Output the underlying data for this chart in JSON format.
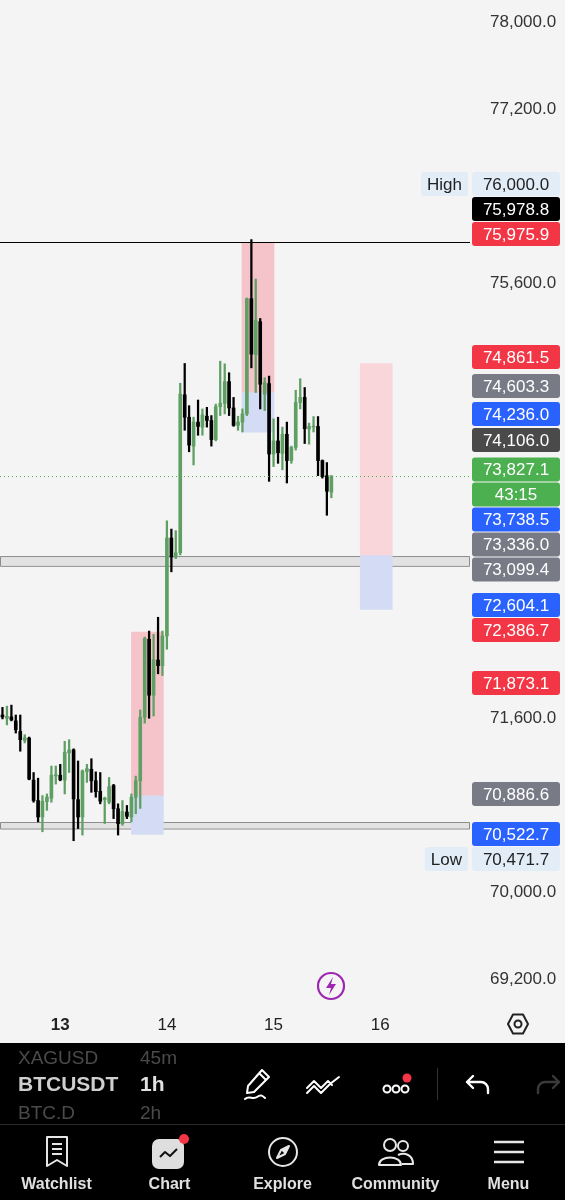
{
  "chart_data": {
    "type": "candlestick",
    "series": [
      {
        "type": "candlestick",
        "x": [
          12.458,
          12.5,
          12.542,
          12.583,
          12.625,
          12.667,
          12.708,
          12.75,
          12.792,
          12.833,
          12.875,
          12.917,
          12.958,
          13,
          13.042,
          13.083,
          13.125,
          13.167,
          13.208,
          13.25,
          13.292,
          13.333,
          13.375,
          13.417,
          13.458,
          13.5,
          13.542,
          13.583,
          13.625,
          13.667,
          13.708,
          13.75,
          13.792,
          13.833,
          13.875,
          13.917,
          13.958,
          14,
          14.042,
          14.083,
          14.125,
          14.167,
          14.208,
          14.25,
          14.292,
          14.333,
          14.375,
          14.417,
          14.458,
          14.5,
          14.542,
          14.583,
          14.625,
          14.667,
          14.708,
          14.75,
          14.792,
          14.833,
          14.875,
          14.917,
          14.958,
          15,
          15.042,
          15.083,
          15.125,
          15.167,
          15.208,
          15.25,
          15.292,
          15.333,
          15.375,
          15.417,
          15.458,
          15.5,
          15.542
        ],
        "ohlc": [
          [
            71628,
            71698,
            71592,
            71610
          ],
          [
            71598,
            71710,
            71537,
            71616
          ],
          [
            71610,
            71719,
            71574,
            71583
          ],
          [
            71574,
            71628,
            71462,
            71492
          ],
          [
            71477,
            71628,
            71295,
            71401
          ],
          [
            71395,
            71447,
            71371,
            71419
          ],
          [
            71416,
            71425,
            71032,
            71038
          ],
          [
            71029,
            71099,
            70826,
            70841
          ],
          [
            70841,
            71047,
            70645,
            70690
          ],
          [
            70690,
            70887,
            70554,
            70835
          ],
          [
            70832,
            70902,
            70751,
            70872
          ],
          [
            70863,
            71159,
            70826,
            71074
          ],
          [
            71068,
            71159,
            70993,
            71080
          ],
          [
            71074,
            71174,
            71023,
            71032
          ],
          [
            71029,
            71386,
            70902,
            71286
          ],
          [
            71280,
            71401,
            71099,
            71307
          ],
          [
            71307,
            71317,
            70471.7,
            70856
          ],
          [
            70850,
            71205,
            70584,
            70690
          ],
          [
            70690,
            71123,
            70524,
            71114
          ],
          [
            71108,
            71174,
            71008,
            71135
          ],
          [
            71129,
            71226,
            70917,
            71023
          ],
          [
            71023,
            71105,
            70872,
            70923
          ],
          [
            70926,
            71099,
            70811,
            70835
          ],
          [
            70850,
            70872,
            70630,
            70863
          ],
          [
            70826,
            71053,
            70811,
            70969
          ],
          [
            70980,
            70990,
            70675,
            70766
          ],
          [
            70766,
            70811,
            70524,
            70629
          ],
          [
            70629,
            70841,
            70614,
            70741
          ],
          [
            70735,
            70796,
            70675,
            70696
          ],
          [
            70690,
            70902,
            70645,
            70872
          ],
          [
            70872,
            71066,
            70720,
            71023
          ],
          [
            71023,
            71674,
            70769,
            71607
          ],
          [
            71607,
            72345,
            71553,
            72333
          ],
          [
            72325,
            72400,
            71598,
            71810
          ],
          [
            71810,
            72370,
            71619,
            72137
          ],
          [
            72134,
            72527,
            72007,
            72082
          ],
          [
            72082,
            72400,
            71991,
            72355
          ],
          [
            72355,
            73414,
            72233,
            73256
          ],
          [
            73256,
            73338,
            72945,
            73081
          ],
          [
            73081,
            73323,
            73066,
            73120
          ],
          [
            73120,
            74679,
            73100,
            74579
          ],
          [
            74573,
            74861,
            74247,
            74367
          ],
          [
            74367,
            74473,
            74049,
            74110
          ],
          [
            74101,
            74367,
            73928,
            74322
          ],
          [
            74322,
            74525,
            74201,
            74282
          ],
          [
            74276,
            74443,
            74201,
            74388
          ],
          [
            74376,
            74458,
            74276,
            74337
          ],
          [
            74337,
            74382,
            74101,
            74161
          ],
          [
            74161,
            74488,
            74149,
            74464
          ],
          [
            74464,
            74882,
            74382,
            74494
          ],
          [
            74494,
            74858,
            74397,
            74694
          ],
          [
            74694,
            74776,
            74382,
            74452
          ],
          [
            74452,
            74549,
            74283,
            74292
          ],
          [
            74292,
            74376,
            74247,
            74322
          ],
          [
            74322,
            74443,
            74231,
            74397
          ],
          [
            74397,
            75463,
            74382,
            75457
          ],
          [
            75457,
            76000,
            74821,
            74948
          ],
          [
            74942,
            75638,
            74594,
            75260
          ],
          [
            75245,
            75275,
            74443,
            74670
          ],
          [
            74579,
            74730,
            74428,
            74685
          ],
          [
            74676,
            74745,
            73777,
            74028
          ],
          [
            74028,
            74352,
            73913,
            74149
          ],
          [
            74149,
            74367,
            73943,
            74040
          ],
          [
            74034,
            74276,
            73883,
            74210
          ],
          [
            74210,
            74322,
            73762,
            73968
          ],
          [
            73968,
            74101,
            73943,
            74089
          ],
          [
            74089,
            74615,
            74065,
            74503
          ],
          [
            74503,
            74721,
            74443,
            74549
          ],
          [
            74549,
            74640,
            74125,
            74261
          ],
          [
            74258,
            74313,
            74119,
            74282
          ],
          [
            74276,
            74373,
            74231,
            74282
          ],
          [
            74282,
            74373,
            73829,
            73968
          ],
          [
            73968,
            73974,
            73807,
            73822
          ],
          [
            73829,
            73950,
            73465,
            73686
          ],
          [
            73677,
            73830,
            73626,
            73827.1
          ]
        ],
        "colors": [
          "#000000",
          "#5f9f63",
          "#000000",
          "#000000",
          "#000000",
          "#5f9f63",
          "#000000",
          "#000000",
          "#000000",
          "#5f9f63",
          "#5f9f63",
          "#5f9f63",
          "#5f9f63",
          "#000000",
          "#5f9f63",
          "#5f9f63",
          "#000000",
          "#000000",
          "#5f9f63",
          "#5f9f63",
          "#000000",
          "#000000",
          "#000000",
          "#5f9f63",
          "#5f9f63",
          "#000000",
          "#000000",
          "#5f9f63",
          "#000000",
          "#5f9f63",
          "#5f9f63",
          "#5f9f63",
          "#5f9f63",
          "#000000",
          "#5f9f63",
          "#000000",
          "#5f9f63",
          "#5f9f63",
          "#000000",
          "#5f9f63",
          "#5f9f63",
          "#000000",
          "#000000",
          "#5f9f63",
          "#000000",
          "#5f9f63",
          "#000000",
          "#000000",
          "#5f9f63",
          "#5f9f63",
          "#5f9f63",
          "#000000",
          "#000000",
          "#5f9f63",
          "#5f9f63",
          "#5f9f63",
          "#000000",
          "#5f9f63",
          "#000000",
          "#5f9f63",
          "#000000",
          "#5f9f63",
          "#000000",
          "#5f9f63",
          "#000000",
          "#5f9f63",
          "#5f9f63",
          "#5f9f63",
          "#000000",
          "#5f9f63",
          "#5f9f63",
          "#000000",
          "#000000",
          "#000000",
          "#5f9f63"
        ]
      },
      {
        "type": "bar",
        "x": [
          13.817,
          14.854,
          15.963
        ],
        "base": [
          70890,
          74600,
          73100
        ],
        "values": [
          1500,
          1370,
          1760
        ],
        "colors": [
          "#f4c4ca",
          "#f4c4ca",
          "#f8d6da"
        ]
      },
      {
        "type": "bar",
        "x": [
          13.817,
          14.854,
          15.963
        ],
        "base": [
          70890,
          74600,
          73100
        ],
        "values": [
          -360,
          -370,
          -500
        ],
        "color": "#d4dbf5"
      }
    ],
    "xlim": [
      12.435,
      16.842
    ],
    "xticks": [
      13,
      14,
      15,
      16
    ],
    "ylim": [
      69200,
      78000
    ],
    "yticks": [
      {
        "value": 78000,
        "label": "78,000.0"
      },
      {
        "value": 77200,
        "label": "77,200.0"
      },
      {
        "value": 75600,
        "label": "75,600.0"
      },
      {
        "value": 71600,
        "label": "71,600.0"
      },
      {
        "value": 70000,
        "label": "70,000.0"
      },
      {
        "value": 69200,
        "label": "69,200.0"
      }
    ],
    "ref_lines": [
      {
        "axis": "y",
        "value": 75978.8,
        "label": "75,978.8",
        "color": "#000000"
      },
      {
        "axis": "y",
        "value": 73827.1,
        "label": "73,827.1",
        "color": "#4caf50",
        "line_style": "dotted"
      }
    ],
    "bands": [
      {
        "axis": "y",
        "from": 73000,
        "to": 73090,
        "color": "#e2e2e2"
      },
      {
        "axis": "y",
        "from": 70584,
        "to": 70644,
        "color": "#e2e2e2"
      }
    ],
    "annotations": [
      "High",
      "76,000.0",
      "75,975.9",
      "74,861.5",
      "74,603.3",
      "74,236.0",
      "74,106.0",
      "43:15",
      "73,738.5",
      "73,336.0",
      "73,099.4",
      "72,604.1",
      "72,386.7",
      "71,873.1",
      "70,886.6",
      "70,522.7",
      "Low",
      "70,471.7",
      "XAGUSD",
      "45m",
      "BTCUSDT",
      "1h",
      "BTC.D",
      "2h",
      "Watchlist",
      "Chart",
      "Explore",
      "Community",
      "Menu"
    ]
  }
}
